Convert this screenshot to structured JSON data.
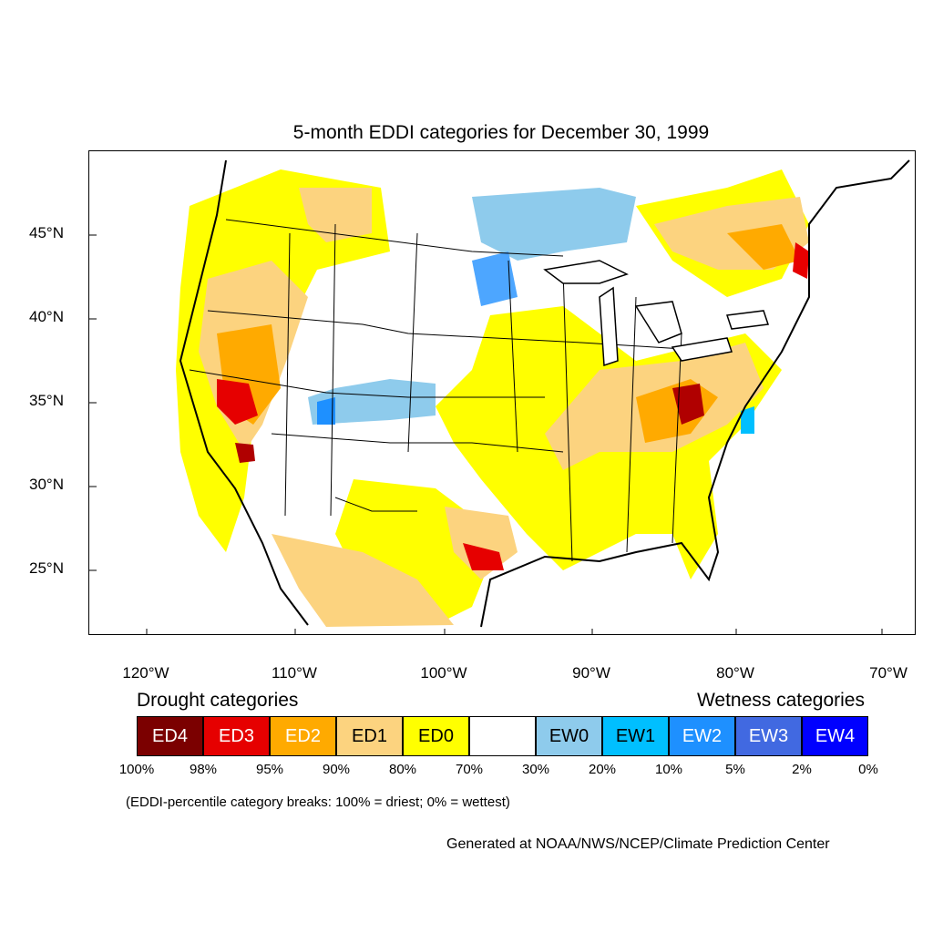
{
  "title": "5-month EDDI categories for December 30, 1999",
  "lat_labels": [
    "45°N",
    "40°N",
    "35°N",
    "30°N",
    "25°N"
  ],
  "lon_labels": [
    "120°W",
    "110°W",
    "100°W",
    "90°W",
    "80°W",
    "70°W"
  ],
  "legend": {
    "drought_heading": "Drought categories",
    "wetness_heading": "Wetness categories",
    "categories": [
      {
        "label": "ED4",
        "color": "#7b0000",
        "text_color": "#ffffff"
      },
      {
        "label": "ED3",
        "color": "#e60000",
        "text_color": "#ffffff"
      },
      {
        "label": "ED2",
        "color": "#ffaa00",
        "text_color": "#ffffff"
      },
      {
        "label": "ED1",
        "color": "#fcd37f",
        "text_color": "#000000"
      },
      {
        "label": "ED0",
        "color": "#ffff00",
        "text_color": "#000000"
      },
      {
        "label": "",
        "color": "#ffffff",
        "text_color": "#000000"
      },
      {
        "label": "EW0",
        "color": "#8ecbec",
        "text_color": "#000000"
      },
      {
        "label": "EW1",
        "color": "#00bfff",
        "text_color": "#000000"
      },
      {
        "label": "EW2",
        "color": "#1e90ff",
        "text_color": "#ffffff"
      },
      {
        "label": "EW3",
        "color": "#4169e1",
        "text_color": "#ffffff"
      },
      {
        "label": "EW4",
        "color": "#0000ff",
        "text_color": "#ffffff"
      }
    ],
    "breaks": [
      "100%",
      "98%",
      "95%",
      "90%",
      "80%",
      "70%",
      "30%",
      "20%",
      "10%",
      "5%",
      "2%",
      "0%"
    ]
  },
  "note": "(EDDI-percentile category breaks: 100% = driest; 0% = wettest)",
  "credit": "Generated at NOAA/NWS/NCEP/Climate Prediction Center"
}
